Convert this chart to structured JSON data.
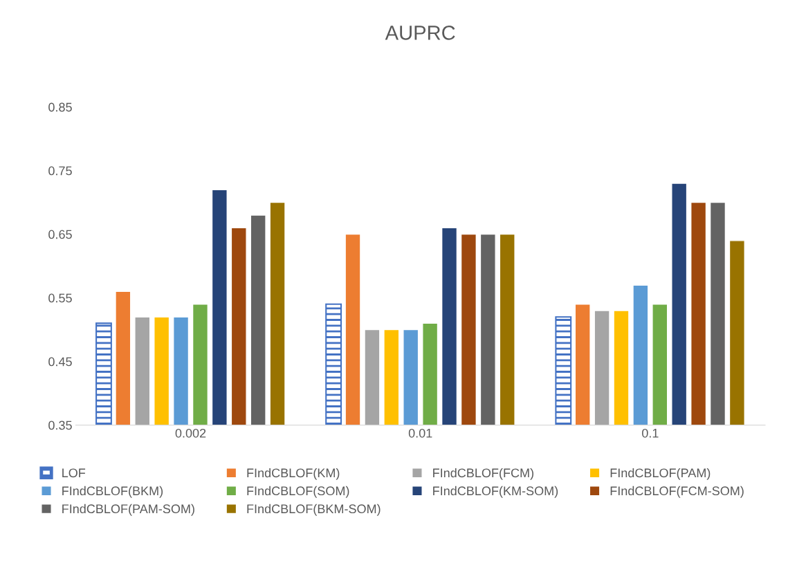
{
  "chart_data": {
    "type": "bar",
    "title": "AUPRC",
    "categories": [
      "0.002",
      "0.01",
      "0.1"
    ],
    "series": [
      {
        "name": "LOF",
        "color": "#4472c4",
        "values": [
          0.51,
          0.54,
          0.52
        ]
      },
      {
        "name": "FIndCBLOF(KM)",
        "color": "#ed7d31",
        "values": [
          0.56,
          0.65,
          0.54
        ]
      },
      {
        "name": "FIndCBLOF(FCM)",
        "color": "#a5a5a5",
        "values": [
          0.52,
          0.5,
          0.53
        ]
      },
      {
        "name": "FIndCBLOF(PAM)",
        "color": "#ffc000",
        "values": [
          0.52,
          0.5,
          0.53
        ]
      },
      {
        "name": "FIndCBLOF(BKM)",
        "color": "#5b9bd5",
        "values": [
          0.52,
          0.5,
          0.57
        ]
      },
      {
        "name": "FIndCBLOF(SOM)",
        "color": "#70ad47",
        "values": [
          0.54,
          0.51,
          0.54
        ]
      },
      {
        "name": "FIndCBLOF(KM-SOM)",
        "color": "#264478",
        "values": [
          0.72,
          0.66,
          0.73
        ]
      },
      {
        "name": "FIndCBLOF(FCM-SOM)",
        "color": "#9e480e",
        "values": [
          0.66,
          0.65,
          0.7
        ]
      },
      {
        "name": "FIndCBLOF(PAM-SOM)",
        "color": "#636363",
        "values": [
          0.68,
          0.65,
          0.7
        ]
      },
      {
        "name": "FIndCBLOF(BKM-SOM)",
        "color": "#997300",
        "values": [
          0.7,
          0.65,
          0.64
        ]
      }
    ],
    "ylim": [
      0.35,
      0.85
    ],
    "yticks": [
      {
        "value": 0.35,
        "label": "0.35"
      },
      {
        "value": 0.45,
        "label": "0.45"
      },
      {
        "value": 0.55,
        "label": "0.55"
      },
      {
        "value": 0.65,
        "label": "0.65"
      },
      {
        "value": 0.75,
        "label": "0.75"
      },
      {
        "value": 0.85,
        "label": "0.85"
      }
    ],
    "grid": false,
    "legend": "bottom"
  }
}
